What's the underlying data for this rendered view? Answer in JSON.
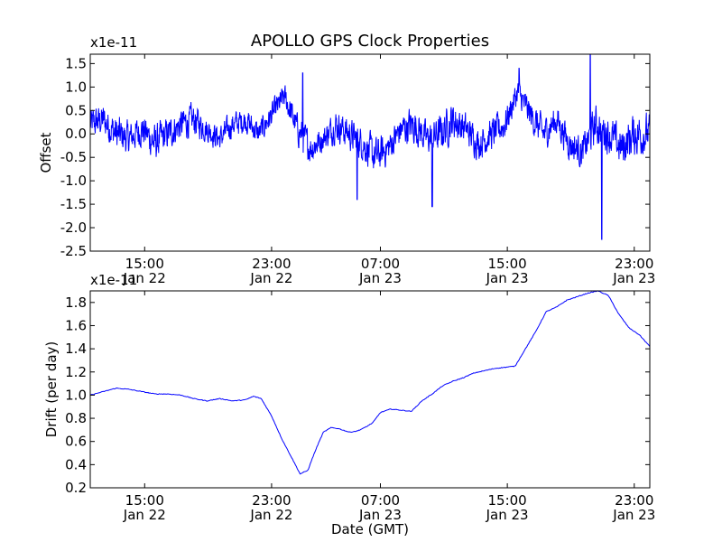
{
  "title": "APOLLO GPS Clock Properties",
  "chart_data": [
    {
      "type": "line",
      "name": "offset",
      "ylabel": "Offset",
      "xlabel": "",
      "exponent_label": "x1e-11",
      "ylim": [
        -2.5,
        1.7
      ],
      "xlim_hours": [
        0,
        21.6
      ],
      "yticks": [
        {
          "value": 1.5,
          "label": "1.5"
        },
        {
          "value": 1.0,
          "label": "1.0"
        },
        {
          "value": 0.5,
          "label": "0.5"
        },
        {
          "value": 0.0,
          "label": "0.0"
        },
        {
          "value": -0.5,
          "label": "-0.5"
        },
        {
          "value": -1.0,
          "label": "-1.0"
        },
        {
          "value": -1.5,
          "label": "-1.5"
        },
        {
          "value": -2.0,
          "label": "-2.0"
        },
        {
          "value": -2.5,
          "label": "-2.5"
        }
      ],
      "xticks": [
        {
          "hour": 2.1,
          "time": "15:00",
          "date": "Jan 22"
        },
        {
          "hour": 7.0,
          "time": "23:00",
          "date": "Jan 22"
        },
        {
          "hour": 11.2,
          "time": "07:00",
          "date": "Jan 23"
        },
        {
          "hour": 16.1,
          "time": "15:00",
          "date": "Jan 23"
        },
        {
          "hour": 21.0,
          "time": "23:00",
          "date": "Jan 23"
        }
      ],
      "color": "#0000ff",
      "envelope": {
        "hours": [
          0,
          0.5,
          1.0,
          1.5,
          2.0,
          2.5,
          3.0,
          3.5,
          4.0,
          4.5,
          5.0,
          5.5,
          6.0,
          6.5,
          7.0,
          7.5,
          8.0,
          8.5,
          9.0,
          9.5,
          10.0,
          10.5,
          11.0,
          11.5,
          12.0,
          12.5,
          13.0,
          13.5,
          14.0,
          14.5,
          15.0,
          15.5,
          16.0,
          16.5,
          17.0,
          17.5,
          18.0,
          18.5,
          19.0,
          19.5,
          20.0,
          20.5,
          21.0,
          21.6
        ],
        "center": [
          0.2,
          0.3,
          0.0,
          -0.1,
          0.1,
          -0.2,
          0.0,
          0.2,
          0.3,
          0.1,
          -0.1,
          0.2,
          0.3,
          0.0,
          0.4,
          0.8,
          0.1,
          -0.3,
          -0.1,
          0.2,
          0.0,
          -0.2,
          -0.5,
          -0.3,
          0.1,
          0.2,
          -0.1,
          0.0,
          0.3,
          0.1,
          -0.2,
          0.0,
          0.2,
          0.9,
          0.4,
          0.0,
          0.3,
          -0.2,
          -0.4,
          0.2,
          0.0,
          -0.3,
          0.0,
          0.0
        ],
        "amp": [
          0.5,
          0.5,
          0.6,
          0.5,
          0.5,
          0.6,
          0.5,
          0.5,
          0.5,
          0.4,
          0.4,
          0.4,
          0.4,
          0.4,
          0.4,
          0.4,
          0.5,
          0.5,
          0.4,
          0.5,
          0.5,
          0.5,
          0.6,
          0.5,
          0.5,
          0.6,
          0.5,
          0.6,
          0.6,
          0.5,
          0.5,
          0.5,
          0.5,
          0.4,
          0.5,
          0.5,
          0.5,
          0.5,
          0.5,
          0.6,
          0.6,
          0.6,
          0.7,
          0.6
        ]
      },
      "spikes": [
        {
          "hour": 19.3,
          "value": 1.7
        },
        {
          "hour": 19.75,
          "value": -2.25
        },
        {
          "hour": 13.2,
          "value": -1.55
        },
        {
          "hour": 10.3,
          "value": -1.4
        },
        {
          "hour": 16.55,
          "value": 1.4
        },
        {
          "hour": 8.2,
          "value": 1.3
        }
      ]
    },
    {
      "type": "line",
      "name": "drift",
      "ylabel": "Drift (per day)",
      "xlabel": "Date (GMT)",
      "exponent_label": "x1e-11",
      "ylim": [
        0.2,
        1.9
      ],
      "xlim_hours": [
        0,
        21.6
      ],
      "yticks": [
        {
          "value": 1.8,
          "label": "1.8"
        },
        {
          "value": 1.6,
          "label": "1.6"
        },
        {
          "value": 1.4,
          "label": "1.4"
        },
        {
          "value": 1.2,
          "label": "1.2"
        },
        {
          "value": 1.0,
          "label": "1.0"
        },
        {
          "value": 0.8,
          "label": "0.8"
        },
        {
          "value": 0.6,
          "label": "0.6"
        },
        {
          "value": 0.4,
          "label": "0.4"
        },
        {
          "value": 0.2,
          "label": "0.2"
        }
      ],
      "xticks": [
        {
          "hour": 2.1,
          "time": "15:00",
          "date": "Jan 22"
        },
        {
          "hour": 7.0,
          "time": "23:00",
          "date": "Jan 22"
        },
        {
          "hour": 11.2,
          "time": "07:00",
          "date": "Jan 23"
        },
        {
          "hour": 16.1,
          "time": "15:00",
          "date": "Jan 23"
        },
        {
          "hour": 21.0,
          "time": "23:00",
          "date": "Jan 23"
        }
      ],
      "color": "#0000ff",
      "x": [
        0,
        0.5,
        1.0,
        1.5,
        2.0,
        2.5,
        3.0,
        3.5,
        4.0,
        4.5,
        5.0,
        5.5,
        6.0,
        6.3,
        6.6,
        7.0,
        7.4,
        7.8,
        8.1,
        8.4,
        8.6,
        8.8,
        9.0,
        9.3,
        9.6,
        10.0,
        10.3,
        10.6,
        10.9,
        11.2,
        11.6,
        12.0,
        12.4,
        12.8,
        13.2,
        13.6,
        14.0,
        14.4,
        14.8,
        15.2,
        15.6,
        16.0,
        16.4,
        16.8,
        17.2,
        17.6,
        18.0,
        18.4,
        18.8,
        19.2,
        19.6,
        20.0,
        20.4,
        20.8,
        21.2,
        21.6
      ],
      "y": [
        1.0,
        1.03,
        1.06,
        1.05,
        1.03,
        1.01,
        1.01,
        1.0,
        0.97,
        0.95,
        0.97,
        0.95,
        0.96,
        0.99,
        0.97,
        0.82,
        0.62,
        0.45,
        0.32,
        0.35,
        0.47,
        0.58,
        0.68,
        0.72,
        0.71,
        0.68,
        0.69,
        0.72,
        0.76,
        0.85,
        0.88,
        0.87,
        0.86,
        0.95,
        1.01,
        1.08,
        1.12,
        1.15,
        1.19,
        1.21,
        1.23,
        1.24,
        1.25,
        1.4,
        1.55,
        1.72,
        1.76,
        1.82,
        1.85,
        1.88,
        1.9,
        1.86,
        1.7,
        1.58,
        1.52,
        1.42
      ]
    }
  ]
}
